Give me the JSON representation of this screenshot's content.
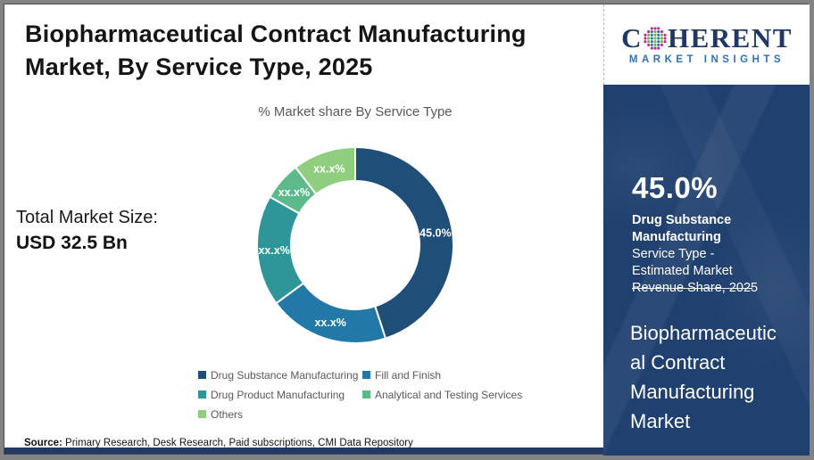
{
  "page": {
    "title_line1": "Biopharmaceutical Contract Manufacturing",
    "title_line2": "Market, By Service Type, 2025"
  },
  "total_market": {
    "label": "Total Market Size:",
    "value": "USD 32.5 Bn"
  },
  "chart_data": {
    "type": "pie",
    "subtype": "donut",
    "title": "% Market share By Service Type",
    "categories": [
      "Drug Substance Manufacturing",
      "Fill and Finish",
      "Drug Product Manufacturing",
      "Analytical and Testing Services",
      "Others"
    ],
    "values": [
      45.0,
      19.9,
      18.3,
      6.4,
      10.4
    ],
    "display_labels": [
      "45.0%",
      "xx.x%",
      "xx.x%",
      "xx.x%",
      "xx.x%"
    ],
    "colors": [
      "#1F4E79",
      "#2279A7",
      "#2E9699",
      "#5CBA8B",
      "#8FCE7E"
    ],
    "legend_position": "bottom",
    "start_angle_deg": 0,
    "direction": "clockwise"
  },
  "sidebar": {
    "logo": {
      "c": "C",
      "rest": "HERENT",
      "tagline": "MARKET INSIGHTS"
    },
    "stat": {
      "value": "45.0%",
      "bold": "Drug Substance Manufacturing",
      "rest": " Service Type - Estimated Market Revenue Share, 2025"
    },
    "market_name": "Biopharmaceutical Contract Manufacturing Market"
  },
  "footer": {
    "source_label": "Source:",
    "source_text": " Primary Research, Desk Research, Paid subscriptions, CMI Data Repository"
  },
  "logo_colors": {
    "outer": "#C4258F",
    "green": "#6CB33F",
    "blue": "#2E74B5"
  }
}
